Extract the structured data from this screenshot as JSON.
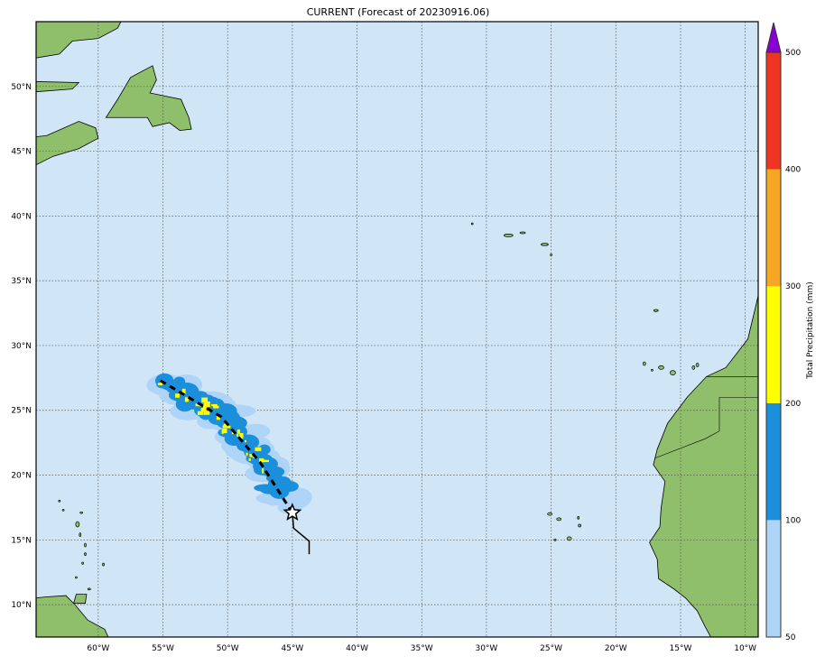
{
  "title": "CURRENT (Forecast of 20230916.06)",
  "map": {
    "lon_range": [
      -64.8,
      -9.0
    ],
    "lat_range": [
      7.5,
      55.0
    ],
    "grid_step_deg": 5,
    "ocean_color": "#d0e6f6",
    "land_color": "#8fbf6a",
    "x_ticks": [
      {
        "lon": -60,
        "label": "60°W"
      },
      {
        "lon": -55,
        "label": "55°W"
      },
      {
        "lon": -50,
        "label": "50°W"
      },
      {
        "lon": -45,
        "label": "45°W"
      },
      {
        "lon": -40,
        "label": "40°W"
      },
      {
        "lon": -35,
        "label": "35°W"
      },
      {
        "lon": -30,
        "label": "30°W"
      },
      {
        "lon": -25,
        "label": "25°W"
      },
      {
        "lon": -20,
        "label": "20°W"
      },
      {
        "lon": -15,
        "label": "15°W"
      },
      {
        "lon": -10,
        "label": "10°W"
      }
    ],
    "y_ticks": [
      {
        "lat": 10,
        "label": "10°N"
      },
      {
        "lat": 15,
        "label": "15°N"
      },
      {
        "lat": 20,
        "label": "20°N"
      },
      {
        "lat": 25,
        "label": "25°N"
      },
      {
        "lat": 30,
        "label": "30°N"
      },
      {
        "lat": 35,
        "label": "35°N"
      },
      {
        "lat": 40,
        "label": "40°N"
      },
      {
        "lat": 45,
        "label": "45°N"
      },
      {
        "lat": 50,
        "label": "50°N"
      }
    ]
  },
  "storm": {
    "current_position": {
      "lon": -45.0,
      "lat": 17.1
    },
    "past_track": [
      {
        "lon": -45.0,
        "lat": 17.1
      },
      {
        "lon": -44.9,
        "lat": 15.9
      },
      {
        "lon": -43.7,
        "lat": 14.9
      },
      {
        "lon": -43.7,
        "lat": 13.9
      }
    ],
    "forecast_track": [
      {
        "lon": -45.0,
        "lat": 17.1
      },
      {
        "lon": -47.5,
        "lat": 21.0
      },
      {
        "lon": -50.5,
        "lat": 24.5
      },
      {
        "lon": -55.2,
        "lat": 27.3
      }
    ]
  },
  "colorbar": {
    "label": "Total Precipitation (mm)",
    "levels": [
      50,
      100,
      200,
      300,
      400,
      500
    ],
    "tick_labels": [
      "50",
      "100",
      "200",
      "300",
      "400",
      "500"
    ],
    "colors": [
      "#aed4f7",
      "#1b8fdc",
      "#ffff00",
      "#f5a623",
      "#ee3524"
    ],
    "extend_color": "#8a00d4"
  }
}
